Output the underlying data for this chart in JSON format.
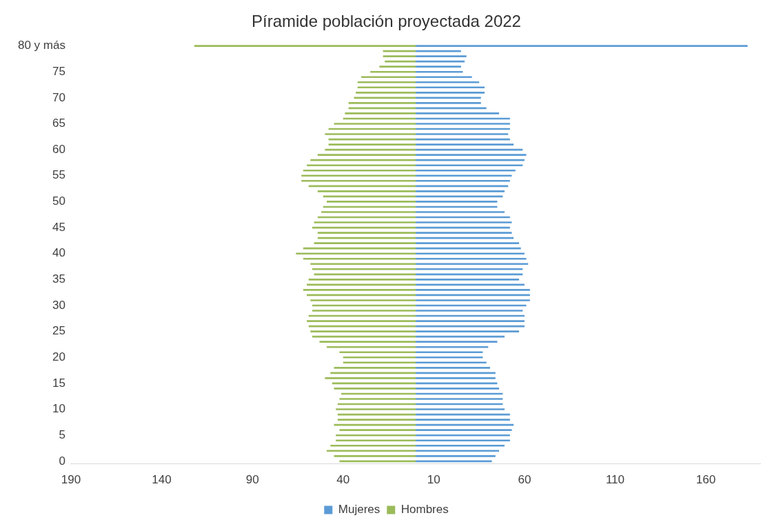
{
  "chart_data": {
    "type": "bar",
    "orientation": "horizontal",
    "stacked": true,
    "title": "Píramide población proyectada 2022",
    "categories": [
      "80 y más",
      null,
      null,
      null,
      null,
      "75",
      null,
      null,
      null,
      null,
      "70",
      null,
      null,
      null,
      null,
      "65",
      null,
      null,
      null,
      null,
      "60",
      null,
      null,
      null,
      null,
      "55",
      null,
      null,
      null,
      null,
      "50",
      null,
      null,
      null,
      null,
      "45",
      null,
      null,
      null,
      null,
      "40",
      null,
      null,
      null,
      null,
      "35",
      null,
      null,
      null,
      null,
      "30",
      null,
      null,
      null,
      null,
      "25",
      null,
      null,
      null,
      null,
      "20",
      null,
      null,
      null,
      null,
      "15",
      null,
      null,
      null,
      null,
      "10",
      null,
      null,
      null,
      null,
      "5",
      null,
      null,
      null,
      null,
      "0"
    ],
    "series": [
      {
        "name": "Mujeres",
        "color": "#5b9bd5",
        "values": [
          183,
          25,
          28,
          27,
          25,
          26,
          31,
          35,
          38,
          38,
          36,
          36,
          39,
          46,
          52,
          52,
          52,
          51,
          52,
          54,
          59,
          61,
          60,
          59,
          55,
          53,
          52,
          51,
          49,
          48,
          45,
          45,
          49,
          52,
          53,
          52,
          53,
          54,
          57,
          58,
          60,
          61,
          62,
          59,
          59,
          57,
          60,
          63,
          63,
          63,
          61,
          59,
          60,
          60,
          60,
          57,
          49,
          45,
          40,
          37,
          37,
          39,
          41,
          44,
          44,
          45,
          46,
          48,
          48,
          48,
          49,
          52,
          52,
          54,
          53,
          52,
          52,
          49,
          46,
          44,
          42
        ]
      },
      {
        "name": "Hombres",
        "color": "#9bbb59",
        "values": [
          -122,
          -18,
          -18,
          -17,
          -20,
          -25,
          -30,
          -32,
          -32,
          -33,
          -34,
          -37,
          -37,
          -39,
          -40,
          -45,
          -48,
          -50,
          -48,
          -48,
          -50,
          -54,
          -58,
          -60,
          -62,
          -63,
          -63,
          -59,
          -54,
          -51,
          -49,
          -51,
          -52,
          -54,
          -56,
          -57,
          -54,
          -54,
          -56,
          -62,
          -66,
          -62,
          -58,
          -57,
          -56,
          -59,
          -60,
          -62,
          -60,
          -58,
          -57,
          -57,
          -59,
          -60,
          -59,
          -58,
          -57,
          -53,
          -49,
          -42,
          -40,
          -40,
          -45,
          -47,
          -50,
          -46,
          -45,
          -41,
          -42,
          -43,
          -44,
          -43,
          -43,
          -45,
          -42,
          -44,
          -44,
          -47,
          -49,
          -45,
          -42
        ]
      }
    ],
    "xlim": [
      -190,
      190
    ],
    "xticks": [
      {
        "value": -190,
        "label": "190"
      },
      {
        "value": -140,
        "label": "140"
      },
      {
        "value": -90,
        "label": "90"
      },
      {
        "value": -40,
        "label": "40"
      },
      10,
      60,
      110,
      160
    ],
    "legend": "bottom",
    "grid": false
  }
}
